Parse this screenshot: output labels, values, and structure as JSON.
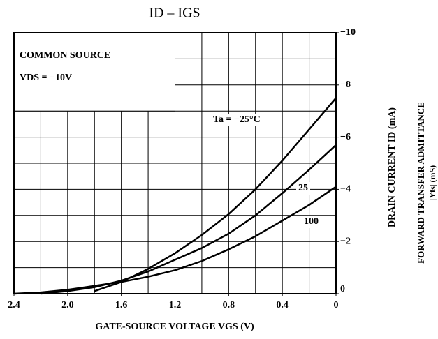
{
  "chart_data": {
    "type": "line",
    "title": "ID – IGS",
    "x_label": "GATE-SOURCE VOLTAGE  VGS  (V)",
    "y_label": "DRAIN CURRENT  ID  (mA)",
    "y2_label": [
      "FORWARD TRANSFER ADMITTANCE",
      "|Yfs|  (mS)"
    ],
    "conditions": [
      "COMMON SOURCE",
      "VDS = −10V"
    ],
    "x": [
      2.4,
      2.2,
      2.0,
      1.8,
      1.6,
      1.4,
      1.2,
      1.0,
      0.8,
      0.6,
      0.4,
      0.2,
      0
    ],
    "series": [
      {
        "name": "Ta = −25°C",
        "color": "#000000",
        "values": [
          null,
          null,
          null,
          -0.1,
          -0.45,
          -0.95,
          -1.55,
          -2.25,
          -3.05,
          -4.0,
          -5.1,
          -6.3,
          -7.5
        ]
      },
      {
        "name": "25",
        "color": "#000000",
        "values": [
          null,
          0,
          -0.1,
          -0.25,
          -0.5,
          -0.85,
          -1.3,
          -1.75,
          -2.3,
          -3.0,
          -3.85,
          -4.75,
          -5.7
        ]
      },
      {
        "name": "100",
        "color": "#000000",
        "values": [
          0,
          -0.05,
          -0.15,
          -0.3,
          -0.45,
          -0.65,
          -0.9,
          -1.25,
          -1.7,
          -2.2,
          -2.8,
          -3.4,
          -4.1
        ]
      }
    ],
    "xlim": [
      2.4,
      0
    ],
    "xticks": [
      2.4,
      {
        "value": 2,
        "label": "2.0"
      },
      1.6,
      1.2,
      0.8,
      0.4,
      0
    ],
    "ylim": [
      0,
      -10
    ],
    "yticks": [
      {
        "value": -10,
        "label": "−10"
      },
      {
        "value": -8,
        "label": "−8"
      },
      {
        "value": -6,
        "label": "−6"
      },
      {
        "value": -4,
        "label": "−4"
      },
      {
        "value": -2,
        "label": "−2"
      },
      0
    ],
    "xgrid": [
      2.2,
      2.0,
      1.8,
      1.6,
      1.4,
      1.2,
      1.0,
      0.8,
      0.6,
      0.4,
      0.2
    ],
    "ygrid": [
      -1,
      -2,
      -3,
      -4,
      -5,
      -6,
      -7,
      -8,
      -9
    ],
    "grid": true
  }
}
